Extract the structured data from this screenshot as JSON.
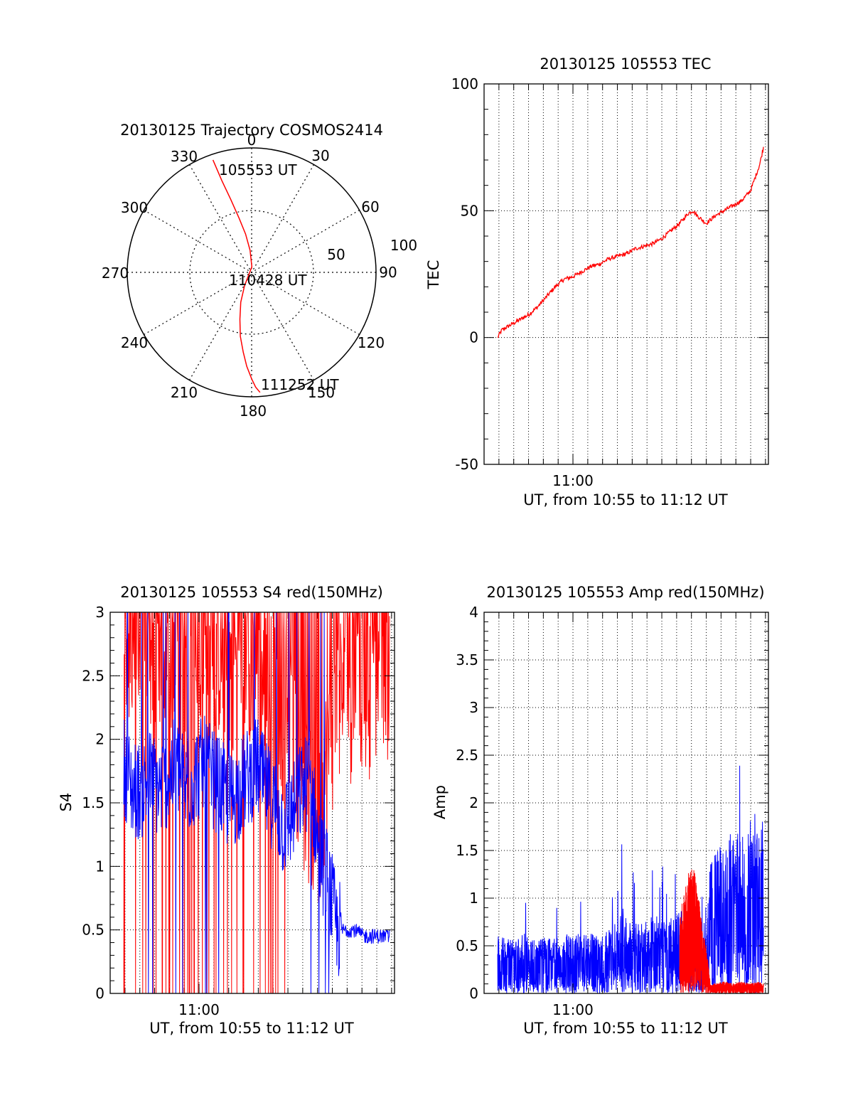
{
  "colors": {
    "red": "#ff0000",
    "blue": "#0000ff",
    "axis": "#000000",
    "grid": "#000000"
  },
  "chart_data": [
    {
      "id": "trajectory",
      "type": "polar",
      "title": "20130125 Trajectory COSMOS2414",
      "angle_labels": [
        "0",
        "30",
        "60",
        "90",
        "120",
        "150",
        "180",
        "210",
        "240",
        "270",
        "300",
        "330"
      ],
      "radial_labels": [
        "50",
        "100"
      ],
      "grid": true,
      "trajectory": {
        "azimuth_deg": [
          341,
          342,
          344,
          347,
          351,
          356,
          2,
          208,
          200,
          194,
          190,
          186,
          183,
          180,
          178,
          176
        ],
        "elevation_deg": [
          4,
          20,
          35,
          50,
          62,
          74,
          86,
          79,
          67,
          55,
          43,
          32,
          22,
          13,
          7,
          3
        ],
        "color": "red"
      },
      "annotations": [
        {
          "text": "105553 UT",
          "azimuth_deg": 347,
          "elevation_deg": 0
        },
        {
          "text": "110428 UT",
          "azimuth_deg": 110,
          "elevation_deg": 80
        },
        {
          "text": "111252 UT",
          "azimuth_deg": 166,
          "elevation_deg": 0
        }
      ]
    },
    {
      "id": "tec",
      "type": "line",
      "title": "20130125 105553 TEC",
      "xlabel": "UT, from 10:55 to 11:12 UT",
      "ylabel": "TEC",
      "xlim": [
        10.9,
        11.22
      ],
      "ylim": [
        -50,
        100
      ],
      "yticks": [
        -50,
        0,
        50,
        100
      ],
      "xticks": [
        {
          "value": 11.0,
          "label": "11:00"
        }
      ],
      "grid": true,
      "series": [
        {
          "color": "red",
          "x": [
            10.9153,
            10.92,
            10.93,
            10.94,
            10.95,
            10.96,
            10.97,
            10.98,
            10.99,
            11.0,
            11.01,
            11.02,
            11.03,
            11.04,
            11.05,
            11.06,
            11.07,
            11.08,
            11.09,
            11.1,
            11.11,
            11.12,
            11.125,
            11.13,
            11.135,
            11.14,
            11.15,
            11.16,
            11.17,
            11.18,
            11.19,
            11.2,
            11.21,
            11.2144
          ],
          "y": [
            0,
            3,
            5,
            7,
            9,
            12,
            16,
            20,
            23,
            24,
            26,
            28,
            29,
            31,
            32,
            33,
            35,
            36,
            37,
            39,
            42,
            45,
            47,
            49,
            50,
            48,
            45,
            48,
            50,
            52,
            54,
            58,
            68,
            75
          ]
        }
      ]
    },
    {
      "id": "s4",
      "type": "line",
      "title": "20130125 105553 S4 red(150MHz)",
      "xlabel": "UT, from 10:55 to 11:12 UT",
      "ylabel": "S4",
      "xlim": [
        10.9,
        11.22
      ],
      "ylim": [
        0,
        3
      ],
      "yticks": [
        0,
        0.5,
        1,
        1.5,
        2,
        2.5,
        3
      ],
      "xticks": [
        {
          "value": 11.0,
          "label": "11:00"
        }
      ],
      "grid": true,
      "series": [
        {
          "color": "red",
          "x": [
            10.9153,
            10.925,
            10.935,
            10.945,
            10.955,
            10.965,
            10.975,
            10.985,
            10.995,
            11.005,
            11.015,
            11.025,
            11.035,
            11.045,
            11.055,
            11.065,
            11.075,
            11.085,
            11.095,
            11.105,
            11.115,
            11.125,
            11.135,
            11.145,
            11.155,
            11.165,
            11.175,
            11.185,
            11.195,
            11.205,
            11.2144
          ],
          "y": [
            2.9,
            2.8,
            2.7,
            2.6,
            2.5,
            2.6,
            2.7,
            2.5,
            2.6,
            2.6,
            2.7,
            2.7,
            2.6,
            2.6,
            2.7,
            2.6,
            2.4,
            2.3,
            2.2,
            2.1,
            1.7,
            1.4,
            1.3,
            1.9,
            2.3,
            2.4,
            2.3,
            2.3,
            2.4,
            2.4,
            2.5
          ]
        },
        {
          "color": "blue",
          "x": [
            10.9153,
            10.925,
            10.935,
            10.945,
            10.955,
            10.965,
            10.975,
            10.985,
            10.995,
            11.005,
            11.015,
            11.025,
            11.035,
            11.045,
            11.055,
            11.065,
            11.075,
            11.085,
            11.095,
            11.105,
            11.115,
            11.125,
            11.135,
            11.145,
            11.155,
            11.165,
            11.175,
            11.185,
            11.195,
            11.205,
            11.2144
          ],
          "y": [
            1.8,
            1.6,
            1.6,
            1.7,
            1.6,
            1.7,
            1.8,
            1.6,
            1.7,
            1.8,
            1.7,
            1.6,
            1.5,
            1.6,
            1.7,
            1.8,
            1.6,
            1.5,
            1.3,
            1.4,
            1.6,
            1.7,
            1.1,
            0.9,
            0.5,
            0.5,
            0.5,
            0.45,
            0.45,
            0.45,
            0.45
          ]
        }
      ]
    },
    {
      "id": "amp",
      "type": "line",
      "title": "20130125 105553 Amp red(150MHz)",
      "xlabel": "UT, from 10:55 to 11:12 UT",
      "ylabel": "Amp",
      "xlim": [
        10.9,
        11.22
      ],
      "ylim": [
        0,
        4
      ],
      "yticks": [
        0,
        0.5,
        1,
        1.5,
        2,
        2.5,
        3,
        3.5,
        4
      ],
      "xticks": [
        {
          "value": 11.0,
          "label": "11:00"
        }
      ],
      "grid": true,
      "series": [
        {
          "color": "blue",
          "x": [
            10.9153,
            10.925,
            10.935,
            10.945,
            10.955,
            10.965,
            10.975,
            10.985,
            10.995,
            11.005,
            11.015,
            11.025,
            11.035,
            11.045,
            11.055,
            11.065,
            11.075,
            11.085,
            11.095,
            11.105,
            11.115,
            11.125,
            11.135,
            11.145,
            11.155,
            11.165,
            11.175,
            11.185,
            11.195,
            11.205,
            11.2144
          ],
          "y": [
            0.6,
            0.55,
            0.55,
            0.6,
            0.55,
            0.55,
            0.6,
            0.55,
            0.6,
            0.6,
            0.6,
            0.6,
            0.6,
            0.7,
            0.9,
            0.7,
            0.7,
            0.75,
            0.8,
            0.7,
            0.8,
            0.85,
            0.6,
            0.55,
            1.3,
            1.5,
            1.6,
            1.6,
            1.7,
            1.8,
            1.8
          ]
        },
        {
          "color": "red",
          "x": [
            11.12,
            11.125,
            11.13,
            11.135,
            11.14,
            11.145,
            11.15,
            11.155,
            11.16,
            11.17,
            11.18,
            11.19,
            11.2,
            11.21,
            11.2144
          ],
          "y": [
            0.8,
            1.0,
            1.2,
            1.3,
            1.1,
            0.7,
            0.5,
            0.08,
            0.1,
            0.12,
            0.1,
            0.12,
            0.1,
            0.12,
            0.1
          ]
        }
      ]
    }
  ]
}
